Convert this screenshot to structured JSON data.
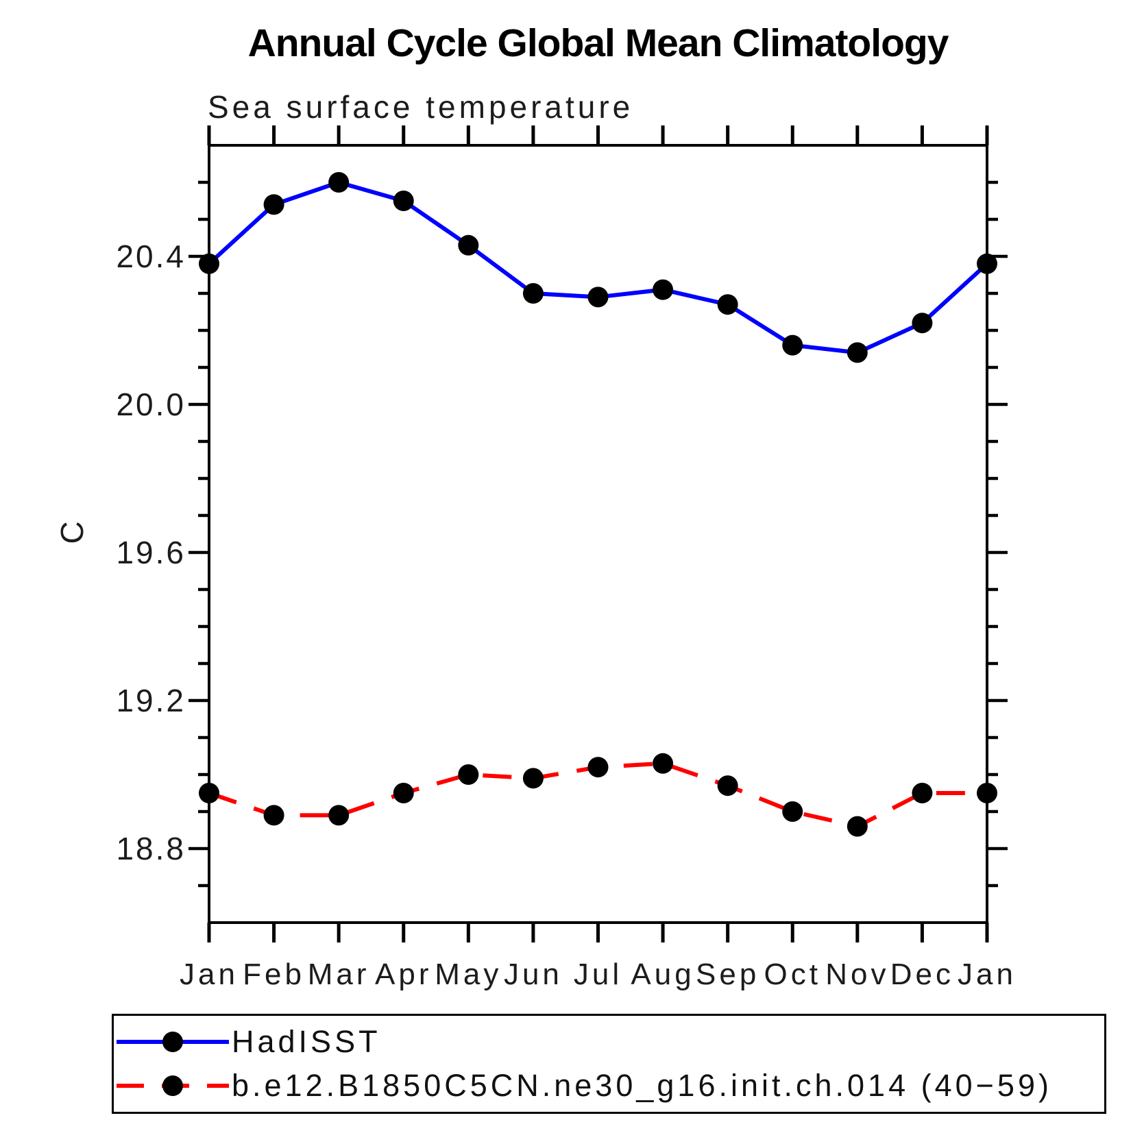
{
  "chart": {
    "title": "Annual Cycle Global Mean Climatology",
    "subtitle": "Sea surface temperature",
    "ylabel": "C"
  },
  "chart_data": {
    "type": "line",
    "categories": [
      "Jan",
      "Feb",
      "Mar",
      "Apr",
      "May",
      "Jun",
      "Jul",
      "Aug",
      "Sep",
      "Oct",
      "Nov",
      "Dec",
      "Jan"
    ],
    "series": [
      {
        "name": "HadISST",
        "color": "#0000ff",
        "line_style": "solid",
        "marker": "filled-circle",
        "marker_color": "#000000",
        "values": [
          20.38,
          20.54,
          20.6,
          20.55,
          20.43,
          20.3,
          20.29,
          20.31,
          20.27,
          20.16,
          20.14,
          20.22,
          20.38
        ]
      },
      {
        "name": "b.e12.B1850C5CN.ne30_g16.init.ch.014 (40−59)",
        "color": "#ff0000",
        "line_style": "dashed",
        "marker": "filled-circle",
        "marker_color": "#000000",
        "values": [
          18.95,
          18.89,
          18.89,
          18.95,
          19.0,
          18.99,
          19.02,
          19.03,
          18.97,
          18.9,
          18.86,
          18.95,
          18.95
        ]
      }
    ],
    "ylim": [
      18.6,
      20.7
    ],
    "yticks_major": [
      18.8,
      19.2,
      19.6,
      20.0,
      20.4
    ],
    "ytick_minor_step": 0.1,
    "grid": false,
    "frame_color": "#000000",
    "legend_position": "bottom-left-box"
  },
  "legend": {
    "items": [
      {
        "label": "HadISST"
      },
      {
        "label": "b.e12.B1850C5CN.ne30_g16.init.ch.014 (40−59)"
      }
    ]
  }
}
